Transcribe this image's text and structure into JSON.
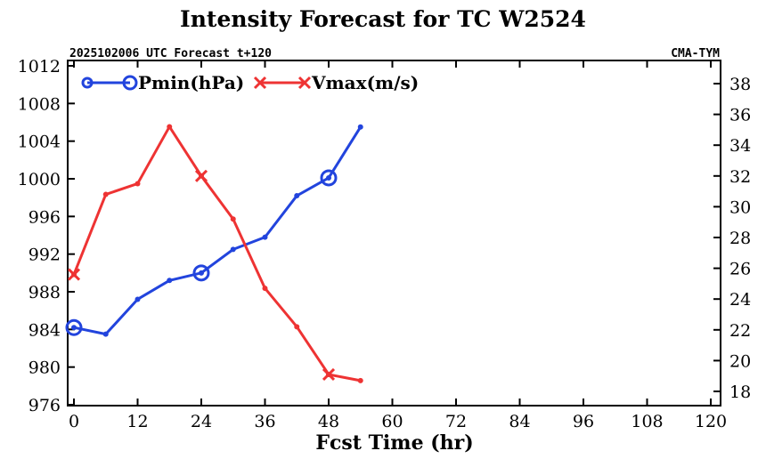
{
  "chart_data": {
    "type": "line",
    "title": "Intensity Forecast for TC W2524",
    "subtitle_left": "2025102006 UTC Forecast t+120",
    "subtitle_right": "CMA-TYM",
    "xlabel": "Fcst Time (hr)",
    "xlim": [
      0,
      120
    ],
    "x_ticks": [
      0,
      12,
      24,
      36,
      48,
      60,
      72,
      84,
      96,
      108,
      120
    ],
    "y_left_lim": [
      976,
      1012
    ],
    "y_left_ticks": [
      976,
      980,
      984,
      988,
      992,
      996,
      1000,
      1004,
      1008,
      1012
    ],
    "y_right_lim": [
      17,
      39
    ],
    "y_right_ticks": [
      18,
      20,
      22,
      24,
      26,
      28,
      30,
      32,
      34,
      36,
      38
    ],
    "grid": false,
    "legend": "top-left",
    "series": [
      {
        "name": "Pmin(hPa)",
        "axis": "left",
        "color": "#2244dd",
        "marker": "circle",
        "x": [
          0,
          6,
          12,
          18,
          24,
          30,
          36,
          42,
          48,
          54
        ],
        "values": [
          984.2,
          983.5,
          987.2,
          989.2,
          990.0,
          992.5,
          993.8,
          998.2,
          1000.1,
          1005.5
        ],
        "marked_x": [
          0,
          24,
          48
        ]
      },
      {
        "name": "Vmax(m/s)",
        "axis": "right",
        "color": "#ee3333",
        "marker": "x",
        "x": [
          0,
          6,
          12,
          18,
          24,
          30,
          36,
          42,
          48,
          54
        ],
        "values": [
          25.6,
          30.8,
          31.5,
          35.2,
          32.0,
          29.2,
          24.7,
          22.2,
          19.1,
          18.7
        ],
        "marked_x": [
          0,
          24,
          48
        ]
      }
    ]
  }
}
